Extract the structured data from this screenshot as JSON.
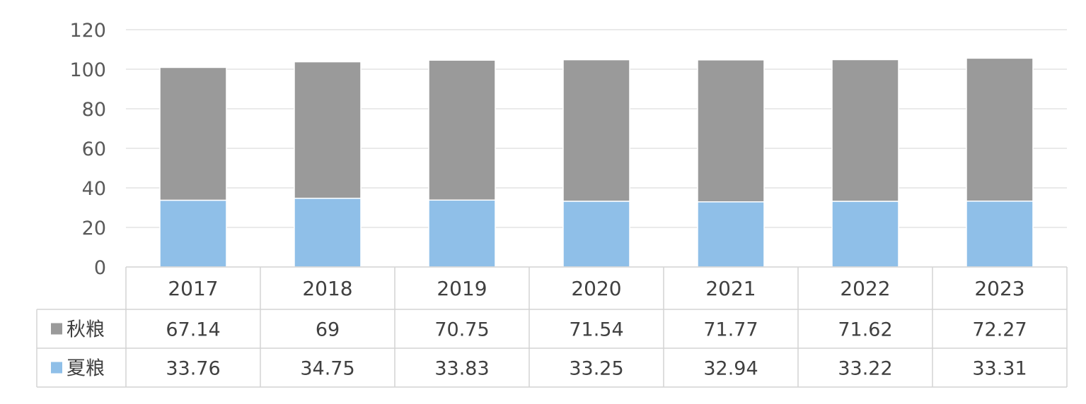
{
  "chart_data": {
    "type": "bar",
    "stacked": true,
    "categories": [
      "2017",
      "2018",
      "2019",
      "2020",
      "2021",
      "2022",
      "2023"
    ],
    "series": [
      {
        "name": "夏粮",
        "values": [
          33.76,
          34.75,
          33.83,
          33.25,
          32.94,
          33.22,
          33.31
        ],
        "color": "#8fbfe8"
      },
      {
        "name": "秋粮",
        "values": [
          67.14,
          69,
          70.75,
          71.54,
          71.77,
          71.62,
          72.27
        ],
        "color": "#9a9a9a"
      }
    ],
    "table_rows": [
      {
        "name": "秋粮",
        "values": [
          "67.14",
          "69",
          "70.75",
          "71.54",
          "71.77",
          "71.62",
          "72.27"
        ],
        "color": "#9a9a9a"
      },
      {
        "name": "夏粮",
        "values": [
          "33.76",
          "34.75",
          "33.83",
          "33.25",
          "32.94",
          "33.22",
          "33.31"
        ],
        "color": "#8fbfe8"
      }
    ],
    "ylim": [
      0,
      120
    ],
    "yticks": [
      "0",
      "20",
      "40",
      "60",
      "80",
      "100",
      "120"
    ],
    "grid": true,
    "legend": "data-table"
  }
}
